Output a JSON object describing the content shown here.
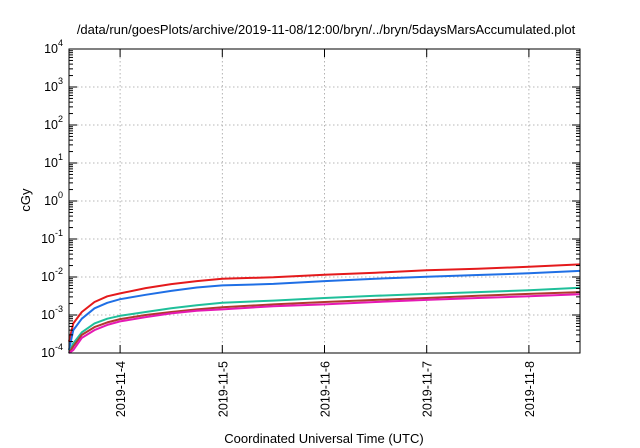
{
  "chart_data": {
    "type": "line",
    "title": "/data/run/goesPlots/archive/2019-11-08/12:00/bryn/../bryn/5daysMarsAccumulated.plot",
    "xlabel": "Coordinated Universal Time (UTC)",
    "ylabel": "cGy",
    "yscale": "log",
    "grid": true,
    "xlim": [
      "2019-11-03 12:00",
      "2019-11-08 12:00"
    ],
    "ylim": [
      0.0001,
      10000
    ],
    "x_ticks": [
      "2019-11-4",
      "2019-11-5",
      "2019-11-6",
      "2019-11-7",
      "2019-11-8"
    ],
    "y_ticks": [
      {
        "base": "10",
        "exp": "4"
      },
      {
        "base": "10",
        "exp": "3"
      },
      {
        "base": "10",
        "exp": "2"
      },
      {
        "base": "10",
        "exp": "1"
      },
      {
        "base": "10",
        "exp": "0"
      },
      {
        "base": "10",
        "exp": "-1"
      },
      {
        "base": "10",
        "exp": "-2"
      },
      {
        "base": "10",
        "exp": "-3"
      },
      {
        "base": "10",
        "exp": "-4"
      }
    ],
    "series": [
      {
        "color": "#e41a1c",
        "x": [
          "2019-11-03 12:00",
          "2019-11-03 13:00",
          "2019-11-03 15:00",
          "2019-11-03 18:00",
          "2019-11-03 21:00",
          "2019-11-04 00:00",
          "2019-11-04 06:00",
          "2019-11-04 12:00",
          "2019-11-04 18:00",
          "2019-11-05 00:00",
          "2019-11-05 12:00",
          "2019-11-06 00:00",
          "2019-11-06 12:00",
          "2019-11-07 00:00",
          "2019-11-07 12:00",
          "2019-11-08 00:00",
          "2019-11-08 12:00"
        ],
        "y": [
          0.0002,
          0.0006,
          0.0012,
          0.0022,
          0.0031,
          0.0037,
          0.0051,
          0.0065,
          0.0078,
          0.009,
          0.0098,
          0.0115,
          0.013,
          0.015,
          0.0165,
          0.0185,
          0.0215
        ]
      },
      {
        "color": "#1f6fe5",
        "x": [
          "2019-11-03 12:00",
          "2019-11-03 13:00",
          "2019-11-03 15:00",
          "2019-11-03 18:00",
          "2019-11-03 21:00",
          "2019-11-04 00:00",
          "2019-11-04 06:00",
          "2019-11-04 12:00",
          "2019-11-04 18:00",
          "2019-11-05 00:00",
          "2019-11-05 12:00",
          "2019-11-06 00:00",
          "2019-11-06 12:00",
          "2019-11-07 00:00",
          "2019-11-07 12:00",
          "2019-11-08 00:00",
          "2019-11-08 12:00"
        ],
        "y": [
          0.00012,
          0.0004,
          0.0008,
          0.0015,
          0.0021,
          0.0026,
          0.0034,
          0.0043,
          0.0053,
          0.006,
          0.0066,
          0.0078,
          0.009,
          0.0102,
          0.0113,
          0.0125,
          0.0145
        ]
      },
      {
        "color": "#1fbf9a",
        "x": [
          "2019-11-03 12:00",
          "2019-11-03 13:00",
          "2019-11-03 15:00",
          "2019-11-03 18:00",
          "2019-11-03 21:00",
          "2019-11-04 00:00",
          "2019-11-04 06:00",
          "2019-11-04 12:00",
          "2019-11-04 18:00",
          "2019-11-05 00:00",
          "2019-11-05 12:00",
          "2019-11-06 00:00",
          "2019-11-06 12:00",
          "2019-11-07 00:00",
          "2019-11-07 12:00",
          "2019-11-08 00:00",
          "2019-11-08 12:00"
        ],
        "y": [
          0.0001,
          0.00018,
          0.00035,
          0.0006,
          0.0008,
          0.00095,
          0.0012,
          0.0015,
          0.0018,
          0.0021,
          0.0024,
          0.0028,
          0.0032,
          0.0036,
          0.004,
          0.0045,
          0.0052
        ]
      },
      {
        "color": "#b03a2e",
        "x": [
          "2019-11-03 12:00",
          "2019-11-03 13:00",
          "2019-11-03 15:00",
          "2019-11-03 18:00",
          "2019-11-03 21:00",
          "2019-11-04 00:00",
          "2019-11-04 06:00",
          "2019-11-04 12:00",
          "2019-11-04 18:00",
          "2019-11-05 00:00",
          "2019-11-05 12:00",
          "2019-11-06 00:00",
          "2019-11-06 12:00",
          "2019-11-07 00:00",
          "2019-11-07 12:00",
          "2019-11-08 00:00",
          "2019-11-08 12:00"
        ],
        "y": [
          0.0001,
          0.00015,
          0.0003,
          0.00048,
          0.00064,
          0.00078,
          0.001,
          0.0012,
          0.0014,
          0.0016,
          0.0019,
          0.0022,
          0.0025,
          0.0028,
          0.0032,
          0.0036,
          0.004
        ]
      },
      {
        "color": "#e619b4",
        "x": [
          "2019-11-03 12:00",
          "2019-11-03 13:00",
          "2019-11-03 15:00",
          "2019-11-03 18:00",
          "2019-11-03 21:00",
          "2019-11-04 00:00",
          "2019-11-04 06:00",
          "2019-11-04 12:00",
          "2019-11-04 18:00",
          "2019-11-05 00:00",
          "2019-11-05 12:00",
          "2019-11-06 00:00",
          "2019-11-06 12:00",
          "2019-11-07 00:00",
          "2019-11-07 12:00",
          "2019-11-08 00:00",
          "2019-11-08 12:00"
        ],
        "y": [
          0.0001,
          0.00012,
          0.00025,
          0.0004,
          0.00055,
          0.00068,
          0.00088,
          0.0011,
          0.0013,
          0.0014,
          0.0017,
          0.0019,
          0.0022,
          0.0025,
          0.0028,
          0.0031,
          0.0035
        ]
      }
    ]
  }
}
